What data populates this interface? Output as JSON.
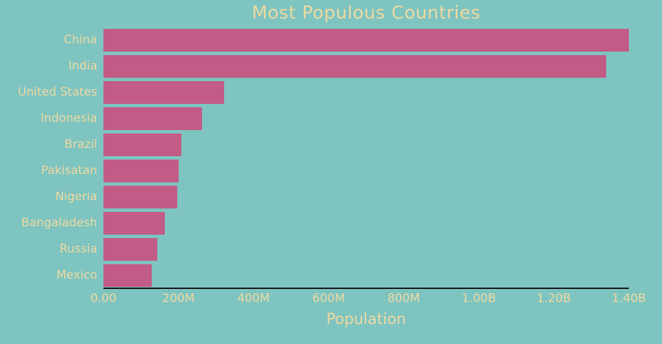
{
  "colors": {
    "background": "#7ec4c0",
    "bar": "#c25b85",
    "text": "#eed9a1",
    "axis_line": "#131313"
  },
  "chart_data": {
    "type": "bar",
    "orientation": "horizontal",
    "title": "Most Populous Countries",
    "xlabel": "Population",
    "ylabel": "",
    "xlim": [
      0,
      1400000000
    ],
    "grid": false,
    "legend": false,
    "categories": [
      "China",
      "India",
      "United States",
      "Indonesia",
      "Brazil",
      "Pakisatan",
      "Nigeria",
      "Bangaladesh",
      "Russia",
      "Mexico"
    ],
    "values": [
      1400000000,
      1340000000,
      322000000,
      262000000,
      208000000,
      200000000,
      196000000,
      163000000,
      144000000,
      129000000
    ],
    "x_ticks": [
      {
        "label": "0.00",
        "value": 0
      },
      {
        "label": "200M",
        "value": 200000000
      },
      {
        "label": "400M",
        "value": 400000000
      },
      {
        "label": "600M",
        "value": 600000000
      },
      {
        "label": "800M",
        "value": 800000000
      },
      {
        "label": "1.00B",
        "value": 1000000000
      },
      {
        "label": "1.20B",
        "value": 1200000000
      },
      {
        "label": "1.40B",
        "value": 1400000000
      }
    ]
  }
}
